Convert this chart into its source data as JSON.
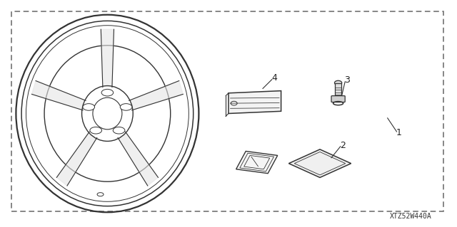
{
  "background_color": "#ffffff",
  "border_color": "#666666",
  "line_color": "#333333",
  "label_color": "#222222",
  "part_number": "XTZ52W440A",
  "fig_width": 6.4,
  "fig_height": 3.19,
  "dpi": 100
}
